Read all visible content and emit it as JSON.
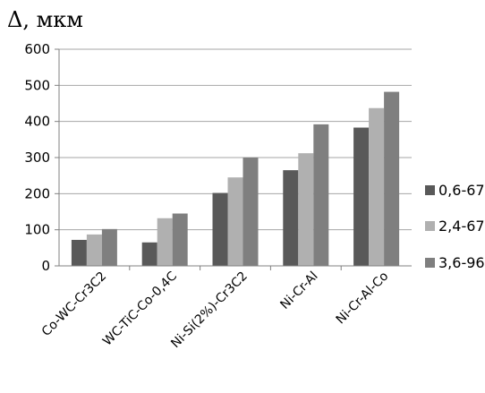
{
  "chart_data": {
    "type": "bar",
    "ylabel": "Δ, мкм",
    "categories": [
      "Co-WC-Cr3C2",
      "WC-TiC-Co-0,4C",
      "Ni-Si(2%)-Cr3C2",
      "Ni-Cr-Al",
      "Ni-Cr-Al-Co"
    ],
    "series": [
      {
        "name": "0,6-67",
        "color": "#595959",
        "values": [
          72,
          65,
          202,
          265,
          383
        ]
      },
      {
        "name": "2,4-67",
        "color": "#b0b0b0",
        "values": [
          87,
          132,
          245,
          312,
          437
        ]
      },
      {
        "name": "3,6-96",
        "color": "#7f7f7f",
        "values": [
          102,
          145,
          300,
          392,
          482
        ]
      }
    ],
    "ylim": [
      0,
      600
    ],
    "yticks": [
      "0",
      "100",
      "200",
      "300",
      "400",
      "500",
      "600"
    ],
    "grid": true,
    "legend": "right"
  }
}
